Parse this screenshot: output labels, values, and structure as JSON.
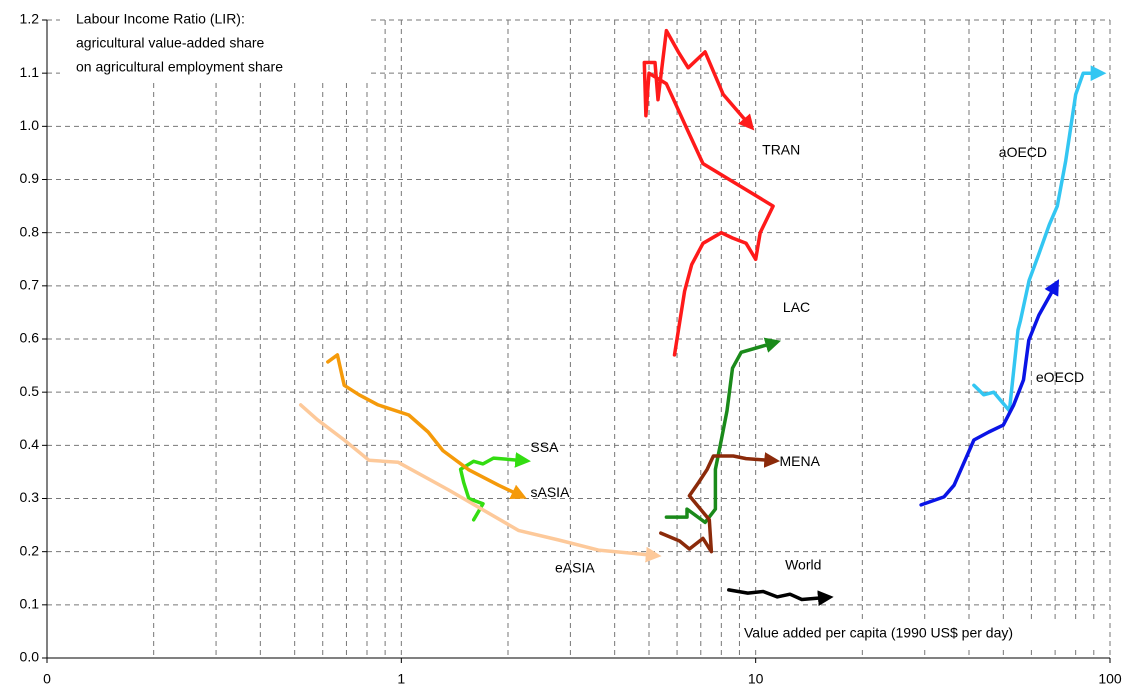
{
  "chart_data": {
    "type": "line",
    "annotation": [
      "Labour Income Ratio (LIR):",
      "agricultural value-added share",
      "on agricultural employment share"
    ],
    "x_label": "Value added per capita (1990 US$ per day)",
    "x_log": true,
    "xlim": [
      0.1,
      100
    ],
    "xticks": [
      {
        "value": 0.1,
        "label": "0"
      },
      1,
      10,
      100
    ],
    "xminorticks": [
      0.2,
      0.3,
      0.4,
      0.5,
      0.6,
      0.7,
      0.8,
      0.9,
      2,
      3,
      4,
      5,
      6,
      7,
      8,
      9,
      20,
      30,
      40,
      50,
      60,
      70,
      80,
      90
    ],
    "ylim": [
      0,
      1.2
    ],
    "yticks": [
      {
        "value": 0,
        "label": "0.0"
      },
      0.1,
      0.2,
      0.3,
      0.4,
      0.5,
      0.6,
      0.7,
      0.8,
      0.9,
      {
        "value": 1,
        "label": "1.0"
      },
      1.1,
      1.2
    ],
    "grid": true,
    "series": [
      {
        "name": "TRAN",
        "color": "#ff1a1a",
        "x": [
          5.9,
          6.3,
          6.6,
          7.1,
          8.0,
          8.6,
          9.4,
          10,
          10.3,
          11.2,
          7.1,
          6.45,
          5.6,
          5.0,
          4.9,
          4.85,
          5.2,
          5.3,
          5.6,
          6.05,
          6.45,
          7.2,
          8.1,
          9.4
        ],
        "values": [
          0.57,
          0.69,
          0.74,
          0.78,
          0.8,
          0.79,
          0.78,
          0.75,
          0.8,
          0.85,
          0.93,
          0.99,
          1.08,
          1.1,
          1.02,
          1.12,
          1.12,
          1.05,
          1.18,
          1.14,
          1.11,
          1.14,
          1.06,
          1.01
        ]
      },
      {
        "name": "LAC",
        "color": "#1a8a1a",
        "x": [
          5.6,
          6.4,
          6.4,
          7.2,
          7.7,
          7.7,
          8.0,
          8.3,
          8.6,
          9.1,
          10.9
        ],
        "values": [
          0.265,
          0.265,
          0.28,
          0.255,
          0.28,
          0.355,
          0.41,
          0.465,
          0.545,
          0.575,
          0.59
        ]
      },
      {
        "name": "MENA",
        "color": "#8b2a0a",
        "x": [
          5.4,
          6.1,
          6.5,
          7.1,
          7.5,
          7.4,
          6.5,
          6.9,
          7.3,
          7.6,
          8.65,
          9.4,
          10.8
        ],
        "values": [
          0.235,
          0.22,
          0.205,
          0.225,
          0.2,
          0.26,
          0.305,
          0.33,
          0.355,
          0.38,
          0.38,
          0.375,
          0.372
        ]
      },
      {
        "name": "World",
        "color": "#000000",
        "x": [
          8.4,
          9.5,
          10.5,
          11.5,
          12.5,
          13.5,
          15.3
        ],
        "values": [
          0.128,
          0.122,
          0.125,
          0.115,
          0.12,
          0.11,
          0.113
        ]
      },
      {
        "name": "aOECD",
        "color": "#33c6f2",
        "x": [
          41.3,
          44,
          47,
          52,
          55,
          55.9,
          59.1,
          63,
          67.4,
          71,
          75,
          80,
          84,
          90
        ],
        "values": [
          0.513,
          0.495,
          0.5,
          0.465,
          0.617,
          0.635,
          0.71,
          0.76,
          0.815,
          0.85,
          0.935,
          1.06,
          1.1,
          1.1
        ]
      },
      {
        "name": "eOECD",
        "color": "#0a14e6",
        "x": [
          29.3,
          34,
          36.3,
          41.3,
          45.5,
          50,
          53.5,
          57,
          59,
          63,
          69
        ],
        "values": [
          0.288,
          0.303,
          0.325,
          0.41,
          0.425,
          0.438,
          0.476,
          0.523,
          0.598,
          0.645,
          0.692
        ]
      },
      {
        "name": "SSA",
        "color": "#33dd11",
        "x": [
          1.6,
          1.7,
          1.55,
          1.5,
          1.47,
          1.6,
          1.7,
          1.82,
          2.14
        ],
        "values": [
          0.26,
          0.29,
          0.3,
          0.33,
          0.355,
          0.37,
          0.365,
          0.376,
          0.372
        ]
      },
      {
        "name": "sASIA",
        "color": "#f59a0a",
        "x": [
          0.62,
          0.66,
          0.69,
          0.76,
          0.86,
          1.05,
          1.19,
          1.31,
          1.55,
          1.88,
          2.1
        ],
        "values": [
          0.557,
          0.57,
          0.513,
          0.495,
          0.476,
          0.457,
          0.425,
          0.39,
          0.354,
          0.325,
          0.31
        ]
      },
      {
        "name": "eASIA",
        "color": "#fdc99a",
        "x": [
          0.52,
          0.58,
          0.69,
          0.81,
          0.98,
          1.36,
          2.14,
          2.78,
          3.6,
          5.0
        ],
        "values": [
          0.476,
          0.448,
          0.41,
          0.372,
          0.368,
          0.316,
          0.24,
          0.222,
          0.203,
          0.194
        ]
      }
    ]
  }
}
